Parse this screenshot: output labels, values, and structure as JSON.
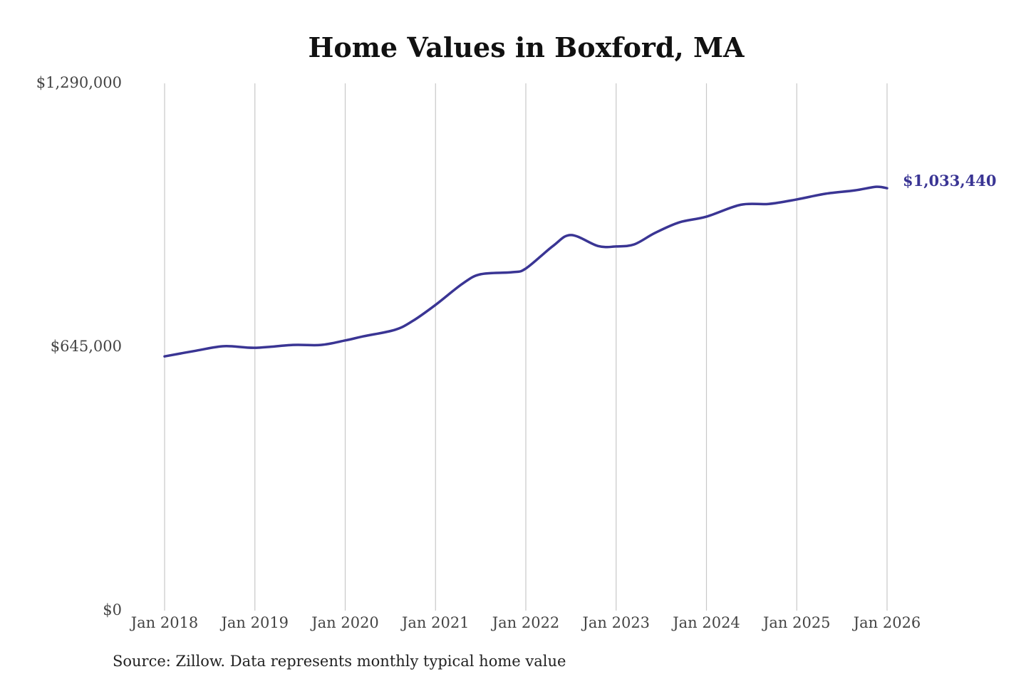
{
  "chart_data": {
    "type": "line",
    "title": "Home Values in Boxford, MA",
    "xlabel": "",
    "ylabel": "",
    "ylim": [
      0,
      1290000
    ],
    "xlim": [
      2018,
      2026
    ],
    "y_ticks": [
      {
        "value": 0,
        "label": "$0"
      },
      {
        "value": 645000,
        "label": "$645,000"
      },
      {
        "value": 1290000,
        "label": "$1,290,000"
      }
    ],
    "x_ticks": [
      {
        "value": 2018,
        "label": "Jan 2018"
      },
      {
        "value": 2019,
        "label": "Jan 2019"
      },
      {
        "value": 2020,
        "label": "Jan 2020"
      },
      {
        "value": 2021,
        "label": "Jan 2021"
      },
      {
        "value": 2022,
        "label": "Jan 2022"
      },
      {
        "value": 2023,
        "label": "Jan 2023"
      },
      {
        "value": 2024,
        "label": "Jan 2024"
      },
      {
        "value": 2025,
        "label": "Jan 2025"
      },
      {
        "value": 2026,
        "label": "Jan 2026"
      }
    ],
    "grid": "vertical",
    "series": [
      {
        "name": "Typical home value",
        "color": "#3a3594",
        "x": [
          2018,
          2018.35,
          2018.66,
          2019,
          2019.42,
          2019.73,
          2020,
          2020.2,
          2020.55,
          2020.75,
          2021,
          2021.3,
          2021.5,
          2021.85,
          2022,
          2022.3,
          2022.5,
          2022.8,
          2023,
          2023.2,
          2023.43,
          2023.7,
          2024,
          2024.38,
          2024.69,
          2025,
          2025.32,
          2025.64,
          2025.88,
          2026
        ],
        "values": [
          622000,
          636000,
          647000,
          643000,
          650000,
          650000,
          661000,
          671000,
          687000,
          709000,
          748000,
          800000,
          823000,
          828000,
          837000,
          892000,
          919000,
          892000,
          891000,
          896000,
          924000,
          950000,
          964000,
          993000,
          995000,
          1006000,
          1020000,
          1028000,
          1037000,
          1033440
        ]
      }
    ],
    "end_label": "$1,033,440",
    "source": "Source: Zillow. Data represents monthly typical home value"
  }
}
